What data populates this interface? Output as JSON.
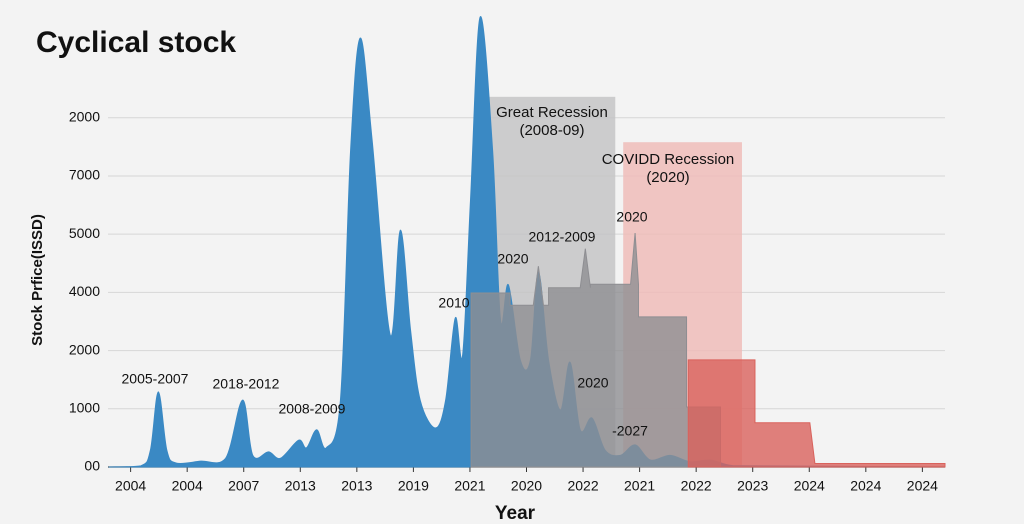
{
  "chart_data": {
    "type": "area",
    "title": "Cyclical stock",
    "x_label": "Year",
    "y_label": "Stock Prfice(ISSD)",
    "xlim": [
      -0.4,
      14.4
    ],
    "xticks": [
      {
        "value": 0,
        "label": "2004"
      },
      {
        "value": 1,
        "label": "2004"
      },
      {
        "value": 2,
        "label": "2007"
      },
      {
        "value": 3,
        "label": "2013"
      },
      {
        "value": 4,
        "label": "2013"
      },
      {
        "value": 5,
        "label": "2019"
      },
      {
        "value": 6,
        "label": "2021"
      },
      {
        "value": 7,
        "label": "2020"
      },
      {
        "value": 8,
        "label": "2022"
      },
      {
        "value": 9,
        "label": "2021"
      },
      {
        "value": 10,
        "label": "2022"
      },
      {
        "value": 11,
        "label": "2023"
      },
      {
        "value": 12,
        "label": "2024"
      },
      {
        "value": 13,
        "label": "2024"
      },
      {
        "value": 14,
        "label": "2024"
      }
    ],
    "ylim": [
      0,
      7800
    ],
    "yticks": [
      {
        "value": 0,
        "label": "00"
      },
      1000,
      2000,
      {
        "value": 3000,
        "label": "4000"
      },
      {
        "value": 4000,
        "label": "5000"
      },
      {
        "value": 5000,
        "label": "7000"
      },
      {
        "value": 6000,
        "label": "2000"
      }
    ],
    "grid": true,
    "regions": [
      {
        "label": [
          "Great Recession",
          "(2008-09)"
        ],
        "start": 6.31,
        "end": 8.57,
        "top": 6360,
        "color": "#c4c4c6"
      },
      {
        "label": [
          "COVIDD Recession",
          "(2020)"
        ],
        "start": 8.71,
        "end": 10.81,
        "top": 5580,
        "color": "#efbcb9"
      }
    ],
    "series": [
      {
        "color": "#3a89c4",
        "smooth": true,
        "x": [
          -0.39,
          0.18,
          0.35,
          0.49,
          0.64,
          0.8,
          1.24,
          1.68,
          1.98,
          2.16,
          2.44,
          2.65,
          2.97,
          3.11,
          3.29,
          3.46,
          3.71,
          3.89,
          4.06,
          4.27,
          4.59,
          4.77,
          4.95,
          5.12,
          5.39,
          5.57,
          5.74,
          5.87,
          6.01,
          6.18,
          6.4,
          6.54,
          6.68,
          6.89,
          7.07,
          7.21,
          7.39,
          7.6,
          7.77,
          7.95,
          8.16,
          8.39,
          8.66,
          8.92,
          9.19,
          9.54,
          9.89,
          10.25,
          10.6,
          11.13,
          14.4
        ],
        "values": [
          0,
          20,
          290,
          1290,
          290,
          70,
          100,
          150,
          1150,
          200,
          260,
          150,
          460,
          330,
          640,
          330,
          1150,
          5450,
          7370,
          5620,
          2270,
          4070,
          2350,
          1150,
          670,
          1150,
          2560,
          1920,
          4590,
          7730,
          5450,
          2530,
          3130,
          1840,
          1840,
          3350,
          1840,
          980,
          1800,
          640,
          840,
          290,
          200,
          380,
          120,
          200,
          90,
          120,
          30,
          20,
          0
        ]
      },
      {
        "color": "#8e8e92",
        "smooth": false,
        "x": [
          6.02,
          6.02,
          6.71,
          6.71,
          7.12,
          7.21,
          7.3,
          7.39,
          7.39,
          7.95,
          8.04,
          8.13,
          8.13,
          8.84,
          8.92,
          8.98,
          8.98,
          9.83,
          9.83,
          10.43,
          10.43
        ],
        "values": [
          0,
          2990,
          2990,
          2780,
          2780,
          3450,
          2780,
          2780,
          3080,
          3080,
          3750,
          3080,
          3140,
          3140,
          4020,
          3140,
          2580,
          2580,
          1030,
          1030,
          0
        ]
      },
      {
        "color": "#d9625c",
        "smooth": false,
        "x": [
          9.86,
          9.86,
          11.04,
          11.04,
          12.01,
          12.1,
          14.4,
          14.4
        ],
        "values": [
          0,
          1840,
          1840,
          760,
          760,
          60,
          60,
          0
        ]
      }
    ],
    "annotations": [
      "2005-2007",
      "2018-2012",
      "2008-2009",
      "2010",
      "2020",
      "2012-2009",
      "2020",
      "2020",
      "-2027"
    ]
  }
}
